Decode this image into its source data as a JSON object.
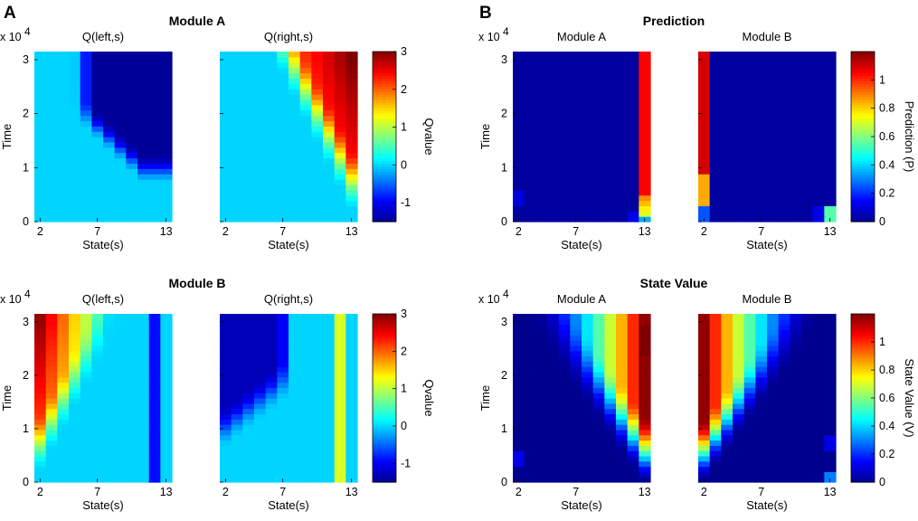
{
  "panels": {
    "A": "A",
    "B": "B"
  },
  "colormap": [
    "#00008f",
    "#0000ff",
    "#0080ff",
    "#00ffff",
    "#80ff80",
    "#ffff00",
    "#ff8000",
    "#ff0000",
    "#800000"
  ],
  "chart_data": [
    {
      "type": "heatmap",
      "group": "Module A",
      "colorbar_label": "Qvalue",
      "clim": [
        -1.5,
        3
      ],
      "colorbar_ticks": [
        3,
        2,
        1,
        0,
        -1
      ],
      "colorbar_tick_labels": [
        "3",
        "2",
        "1",
        "0",
        "-1"
      ],
      "ylabel": "Time",
      "y_multiplier": "x 10",
      "y_exponent": "4",
      "ylim": [
        0,
        3.15
      ],
      "y_ticks": [
        0,
        1,
        2,
        3
      ],
      "y_tick_labels": [
        "0",
        "1",
        "2",
        "3"
      ],
      "x_states": [
        2,
        3,
        4,
        5,
        6,
        7,
        8,
        9,
        10,
        11,
        12,
        13
      ],
      "x_ticks": [
        "2",
        "7",
        "13"
      ],
      "xlabel": "State(s)",
      "maps": [
        {
          "title": "Q(left,s)",
          "pattern": "left_A"
        },
        {
          "title": "Q(right,s)",
          "pattern": "right_A"
        }
      ]
    },
    {
      "type": "heatmap",
      "group": "Module B",
      "colorbar_label": "Qvalue",
      "clim": [
        -1.5,
        3
      ],
      "colorbar_ticks": [
        3,
        2,
        1,
        0,
        -1
      ],
      "colorbar_tick_labels": [
        "3",
        "2",
        "1",
        "0",
        "-1"
      ],
      "ylabel": "Time",
      "y_multiplier": "x 10",
      "y_exponent": "4",
      "ylim": [
        0,
        3.15
      ],
      "y_ticks": [
        0,
        1,
        2,
        3
      ],
      "y_tick_labels": [
        "0",
        "1",
        "2",
        "3"
      ],
      "x_states": [
        2,
        3,
        4,
        5,
        6,
        7,
        8,
        9,
        10,
        11,
        12,
        13
      ],
      "x_ticks": [
        "2",
        "7",
        "13"
      ],
      "xlabel": "State(s)",
      "maps": [
        {
          "title": "Q(left,s)",
          "pattern": "left_B"
        },
        {
          "title": "Q(right,s)",
          "pattern": "right_B"
        }
      ]
    },
    {
      "type": "heatmap",
      "group": "Prediction",
      "colorbar_label": "Prediction (P)",
      "clim": [
        0,
        1.2
      ],
      "colorbar_ticks": [
        1,
        0.8,
        0.6,
        0.4,
        0.2,
        0
      ],
      "colorbar_tick_labels": [
        "1",
        "0.8",
        "0.6",
        "0.4",
        "0.2",
        "0"
      ],
      "ylabel": "Time",
      "y_multiplier": "x 10",
      "y_exponent": "4",
      "ylim": [
        0,
        3.15
      ],
      "y_ticks": [
        0,
        1,
        2,
        3
      ],
      "y_tick_labels": [
        "0",
        "1",
        "2",
        "3"
      ],
      "x_states": [
        2,
        3,
        4,
        5,
        6,
        7,
        8,
        9,
        10,
        11,
        12,
        13
      ],
      "x_ticks": [
        "2",
        "7",
        "13"
      ],
      "xlabel": "State(s)",
      "maps": [
        {
          "title": "Module A",
          "pattern": "pred_A"
        },
        {
          "title": "Module B",
          "pattern": "pred_B"
        }
      ]
    },
    {
      "type": "heatmap",
      "group": "State Value",
      "colorbar_label": "State Value (V)",
      "clim": [
        0,
        1.2
      ],
      "colorbar_ticks": [
        1,
        0.8,
        0.6,
        0.4,
        0.2,
        0
      ],
      "colorbar_tick_labels": [
        "1",
        "0.8",
        "0.6",
        "0.4",
        "0.2",
        "0"
      ],
      "ylabel": "Time",
      "y_multiplier": "x 10",
      "y_exponent": "4",
      "ylim": [
        0,
        3.15
      ],
      "y_ticks": [
        0,
        1,
        2,
        3
      ],
      "y_tick_labels": [
        "0",
        "1",
        "2",
        "3"
      ],
      "x_states": [
        2,
        3,
        4,
        5,
        6,
        7,
        8,
        9,
        10,
        11,
        12,
        13
      ],
      "x_ticks": [
        "2",
        "7",
        "13"
      ],
      "xlabel": "State(s)",
      "maps": [
        {
          "title": "Module A",
          "pattern": "value_A"
        },
        {
          "title": "Module B",
          "pattern": "value_B"
        }
      ]
    }
  ]
}
